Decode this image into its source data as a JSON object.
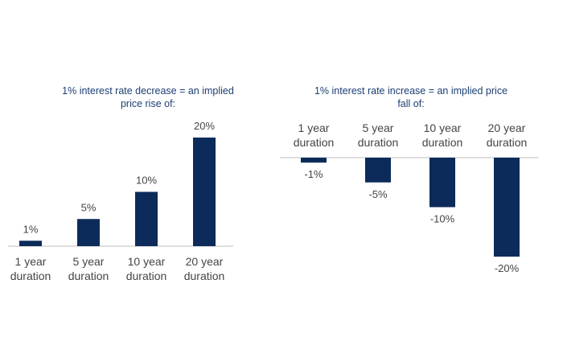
{
  "chart_data": [
    {
      "type": "bar",
      "title_lines": [
        "1% interest rate decrease = an implied",
        "price rise of:"
      ],
      "categories": [
        [
          "1 year",
          "duration"
        ],
        [
          "5 year",
          "duration"
        ],
        [
          "10 year",
          "duration"
        ],
        [
          "20 year",
          "duration"
        ]
      ],
      "values": [
        1,
        5,
        10,
        20
      ],
      "data_labels": [
        "1%",
        "5%",
        "10%",
        "20%"
      ],
      "ylim": [
        0,
        20
      ],
      "bar_color": "#0c2b5a",
      "axis_color": "#bfbfbf",
      "label_position": "above",
      "category_position": "below-axis"
    },
    {
      "type": "bar",
      "title_lines": [
        "1% interest rate increase = an implied price",
        "fall of:"
      ],
      "categories": [
        [
          "1 year",
          "duration"
        ],
        [
          "5 year",
          "duration"
        ],
        [
          "10 year",
          "duration"
        ],
        [
          "20 year",
          "duration"
        ]
      ],
      "values": [
        -1,
        -5,
        -10,
        -20
      ],
      "data_labels": [
        "-1%",
        "-5%",
        "-10%",
        "-20%"
      ],
      "ylim": [
        -20,
        0
      ],
      "bar_color": "#0c2b5a",
      "axis_color": "#bfbfbf",
      "label_position": "below",
      "category_position": "above-axis"
    }
  ]
}
